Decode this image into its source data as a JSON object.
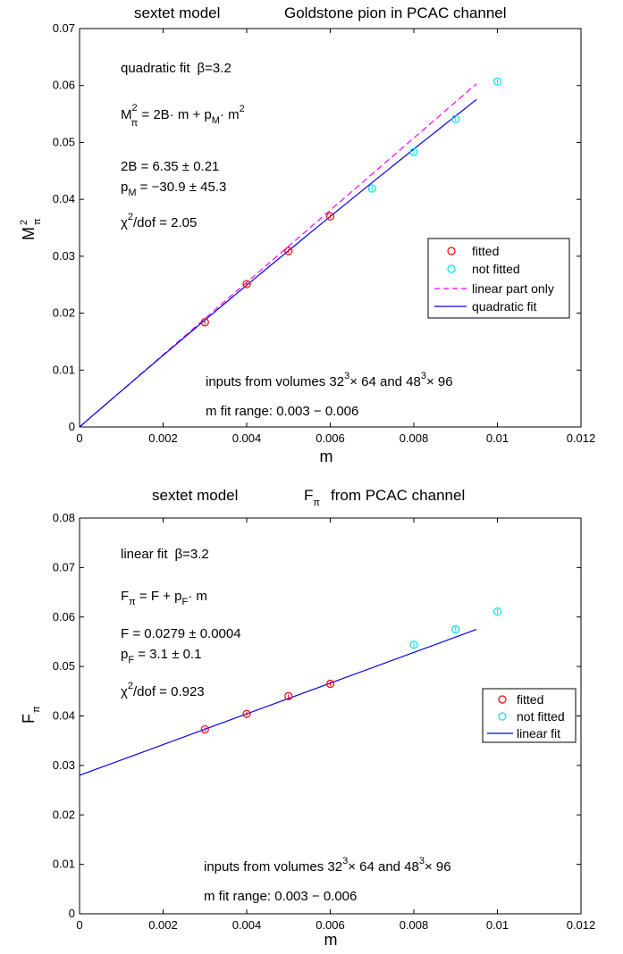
{
  "chart_data": [
    {
      "type": "scatter",
      "title_parts": {
        "model": "sextet model",
        "rest": "Goldstone pion in PCAC channel"
      },
      "xlabel": "m",
      "ylabel": {
        "base": "M",
        "sup": "2",
        "sub": "π"
      },
      "xlim": [
        0,
        0.012
      ],
      "ylim": [
        0,
        0.07
      ],
      "xticks": [
        "0",
        "0.002",
        "0.004",
        "0.006",
        "0.008",
        "0.01",
        "0.012"
      ],
      "yticks": [
        "0",
        "0.01",
        "0.02",
        "0.03",
        "0.04",
        "0.05",
        "0.06",
        "0.07"
      ],
      "grid": false,
      "legend_position": "right",
      "series": [
        {
          "name": "fitted",
          "kind": "points",
          "color": "#ff0000",
          "x": [
            0.003,
            0.004,
            0.005,
            0.006
          ],
          "y": [
            0.0184,
            0.0251,
            0.0309,
            0.037
          ],
          "err": [
            0.0004,
            0.0004,
            0.0003,
            0.0003
          ]
        },
        {
          "name": "not fitted",
          "kind": "points",
          "color": "#00e0ee",
          "x": [
            0.007,
            0.008,
            0.009,
            0.01
          ],
          "y": [
            0.0419,
            0.0483,
            0.0541,
            0.0607
          ],
          "err": [
            0.0004,
            0.0004,
            0.0004,
            0.0004
          ]
        },
        {
          "name": "linear part only",
          "kind": "line",
          "dash": true,
          "color": "#ff00ff",
          "x": [
            0,
            0.0095
          ],
          "y": [
            0,
            0.0603
          ]
        },
        {
          "name": "quadratic fit",
          "kind": "curve",
          "color": "#0000ee",
          "x0": 0,
          "x1": 0.0095,
          "a": 6.35,
          "b": -30.9
        }
      ],
      "annotations": {
        "fit_line": {
          "prefix": "quadratic fit",
          "beta": "β=3.2"
        },
        "formula": {
          "lhs": "M",
          "lhs_sup": "2",
          "lhs_sub": "π",
          "mid": " = 2B· m  + p",
          "p_sub": "M",
          "tail": "· m",
          "tail_sup": "2"
        },
        "param1": "2B =  6.35 ± 0.21",
        "param2": {
          "p": "p",
          "p_sub": "M",
          "rest": " =  −30.9 ± 45.3"
        },
        "chi2": {
          "chi": "χ",
          "sup": "2",
          "rest": "/dof = 2.05"
        },
        "volumes": {
          "a": "inputs from volumes  32",
          "a_sup": "3",
          "b": "× 64 and 48",
          "b_sup": "3",
          "c": "× 96"
        },
        "range": "m fit range:  0.003 − 0.006"
      }
    },
    {
      "type": "scatter",
      "title_parts": {
        "model": "sextet model",
        "rest": "from PCAC channel",
        "sym": "F",
        "sym_sub": "π"
      },
      "xlabel": "m",
      "ylabel": {
        "base": "F",
        "sub": "π"
      },
      "xlim": [
        0,
        0.012
      ],
      "ylim": [
        0,
        0.08
      ],
      "xticks": [
        "0",
        "0.002",
        "0.004",
        "0.006",
        "0.008",
        "0.01",
        "0.012"
      ],
      "yticks": [
        "0",
        "0.01",
        "0.02",
        "0.03",
        "0.04",
        "0.05",
        "0.06",
        "0.07",
        "0.08"
      ],
      "grid": false,
      "legend_position": "right",
      "series": [
        {
          "name": "fitted",
          "kind": "points",
          "color": "#ff0000",
          "x": [
            0.003,
            0.004,
            0.005,
            0.006
          ],
          "y": [
            0.0373,
            0.0404,
            0.044,
            0.0465
          ],
          "err": [
            0.0004,
            0.0004,
            0.0004,
            0.0004
          ]
        },
        {
          "name": "not fitted",
          "kind": "points",
          "color": "#00e0ee",
          "x": [
            0.008,
            0.009,
            0.01
          ],
          "y": [
            0.0544,
            0.0575,
            0.0611
          ],
          "err": [
            0.0005,
            0.0005,
            0.0005
          ]
        },
        {
          "name": "linear fit",
          "kind": "line",
          "color": "#0000ee",
          "x": [
            0,
            0.0095
          ],
          "y": [
            0.028,
            0.0575
          ]
        }
      ],
      "annotations": {
        "fit_line": {
          "prefix": "linear fit",
          "beta": "β=3.2"
        },
        "formula": {
          "lhs": "F",
          "lhs_sub": "π",
          "mid": " = F + p",
          "p_sub": "F",
          "tail": "· m"
        },
        "param1": "F =  0.0279 ± 0.0004",
        "param2": {
          "p": "p",
          "p_sub": "F",
          "rest": " =  3.1 ± 0.1"
        },
        "chi2": {
          "chi": "χ",
          "sup": "2",
          "rest": "/dof = 0.923"
        },
        "volumes": {
          "a": "inputs from volumes  32",
          "a_sup": "3",
          "b": "× 64 and 48",
          "b_sup": "3",
          "c": "× 96"
        },
        "range": "m fit range:  0.003 − 0.006"
      }
    }
  ]
}
